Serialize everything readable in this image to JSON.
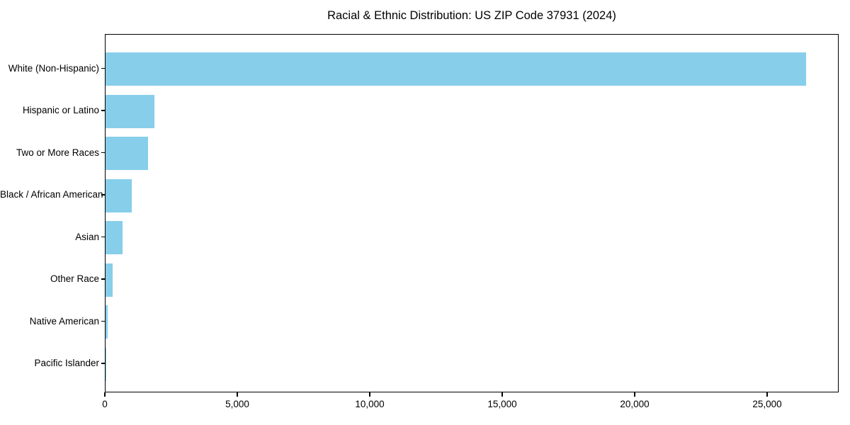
{
  "chart_data": {
    "type": "bar",
    "orientation": "horizontal",
    "title": "Racial & Ethnic Distribution: US ZIP Code 37931 (2024)",
    "categories": [
      "White (Non-Hispanic)",
      "Hispanic or Latino",
      "Two or More Races",
      "Black / African American",
      "Asian",
      "Other Race",
      "Native American",
      "Pacific Islander"
    ],
    "values": [
      26435,
      1845,
      1605,
      990,
      640,
      270,
      85,
      15
    ],
    "xlabel": "",
    "ylabel": "",
    "xlim": [
      0,
      27700
    ],
    "x_ticks": [
      0,
      5000,
      10000,
      15000,
      20000,
      25000
    ],
    "x_tick_labels": [
      "0",
      "5,000",
      "10,000",
      "15,000",
      "20,000",
      "25,000"
    ],
    "grid": false,
    "legend": "none",
    "bar_color": "#87CEEB",
    "axis_color": "#000000",
    "background_color": "#ffffff"
  }
}
